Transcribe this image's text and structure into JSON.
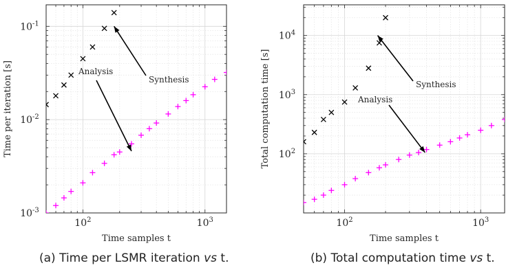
{
  "chart_data": [
    {
      "type": "scatter",
      "panel": "a",
      "xlabel": "Time samples t",
      "ylabel": "Time per iteration [s]",
      "x_scale": "log",
      "y_scale": "log",
      "xlim": [
        50,
        1500
      ],
      "ylim": [
        0.001,
        0.17
      ],
      "grid": true,
      "xticks": [
        {
          "value": 100,
          "base": "10",
          "exp": "2"
        },
        {
          "value": 1000,
          "base": "10",
          "exp": "3"
        }
      ],
      "yticks": [
        {
          "value": 0.001,
          "base": "10",
          "exp": "-3"
        },
        {
          "value": 0.01,
          "base": "10",
          "exp": "-2"
        },
        {
          "value": 0.1,
          "base": "10",
          "exp": "-1"
        }
      ],
      "series": [
        {
          "marker": "x",
          "color": "#000000",
          "x": [
            50,
            60,
            70,
            80,
            100,
            120,
            150,
            180
          ],
          "y": [
            0.0145,
            0.018,
            0.0235,
            0.03,
            0.045,
            0.06,
            0.095,
            0.14
          ]
        },
        {
          "marker": "+",
          "color": "#ff00ff",
          "x": [
            50,
            60,
            70,
            80,
            100,
            120,
            150,
            180,
            200,
            250,
            300,
            350,
            400,
            500,
            600,
            700,
            800,
            1000,
            1200,
            1500
          ],
          "y": [
            0.001,
            0.0012,
            0.00145,
            0.0017,
            0.0021,
            0.0027,
            0.0034,
            0.0042,
            0.0045,
            0.0055,
            0.0068,
            0.008,
            0.0092,
            0.0115,
            0.0138,
            0.016,
            0.0185,
            0.0225,
            0.027,
            0.032
          ]
        }
      ],
      "annotations": [
        {
          "text": "Synthesis",
          "arrow_to": [
            180,
            0.1
          ]
        },
        {
          "text": "Analysis",
          "arrow_to": [
            250,
            0.0046
          ]
        }
      ]
    },
    {
      "type": "scatter",
      "panel": "b",
      "xlabel": "Time samples t",
      "ylabel": "Total computation time [s]",
      "x_scale": "log",
      "y_scale": "log",
      "xlim": [
        50,
        1500
      ],
      "ylim": [
        10,
        33000
      ],
      "grid": true,
      "xticks": [
        {
          "value": 100,
          "base": "10",
          "exp": "2"
        },
        {
          "value": 1000,
          "base": "10",
          "exp": "3"
        }
      ],
      "yticks": [
        {
          "value": 100,
          "base": "10",
          "exp": "2"
        },
        {
          "value": 1000,
          "base": "10",
          "exp": "3"
        },
        {
          "value": 10000,
          "base": "10",
          "exp": "4"
        }
      ],
      "series": [
        {
          "marker": "x",
          "color": "#000000",
          "x": [
            50,
            60,
            70,
            80,
            100,
            120,
            150,
            180,
            200
          ],
          "y": [
            160,
            230,
            380,
            500,
            750,
            1300,
            2800,
            7500,
            20000
          ]
        },
        {
          "marker": "+",
          "color": "#ff00ff",
          "x": [
            50,
            60,
            70,
            80,
            100,
            120,
            150,
            180,
            200,
            250,
            300,
            350,
            400,
            500,
            600,
            700,
            800,
            1000,
            1200,
            1500
          ],
          "y": [
            15,
            17,
            20,
            24,
            30,
            38,
            48,
            58,
            65,
            80,
            95,
            105,
            118,
            140,
            160,
            185,
            210,
            250,
            300,
            380
          ]
        }
      ],
      "annotations": [
        {
          "text": "Synthesis",
          "arrow_to": [
            175,
            10000
          ]
        },
        {
          "text": "Analysis",
          "arrow_to": [
            390,
            105
          ]
        }
      ]
    }
  ],
  "captions": {
    "a": {
      "prefix": "(a) Time per LSMR iteration ",
      "vs": "vs",
      "suffix": " t."
    },
    "b": {
      "prefix": "(b) Total computation time ",
      "vs": "vs",
      "suffix": " t."
    }
  }
}
